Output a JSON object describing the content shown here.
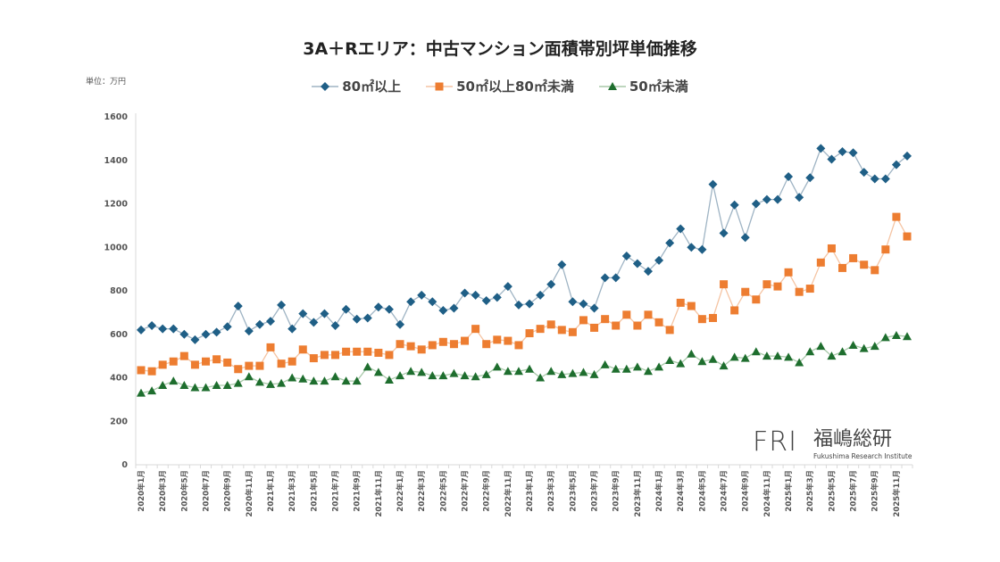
{
  "chart_data": {
    "type": "line",
    "title": "3A＋Rエリア：中古マンション面積帯別坪単価推移",
    "unit_label": "単位：万円",
    "ylim": [
      0,
      1600
    ],
    "yticks": [
      0,
      200,
      400,
      600,
      800,
      1000,
      1200,
      1400,
      1600
    ],
    "grid": false,
    "legend_position": "top",
    "x_tick_labels": [
      "2020年1月",
      "2020年3月",
      "2020年5月",
      "2020年7月",
      "2020年9月",
      "2020年11月",
      "2021年1月",
      "2021年3月",
      "2021年5月",
      "2021年7月",
      "2021年9月",
      "2021年11月",
      "2022年1月",
      "2022年3月",
      "2022年5月",
      "2022年7月",
      "2022年9月",
      "2022年11月",
      "2023年1月",
      "2023年3月",
      "2023年5月",
      "2023年7月",
      "2023年9月",
      "2023年11月",
      "2024年1月",
      "2024年3月",
      "2024年5月",
      "2024年7月",
      "2024年9月",
      "2024年11月",
      "2025年1月",
      "2025年3月",
      "2025年5月",
      "2025年7月",
      "2025年9月",
      "2025年11月"
    ],
    "x_start": "2020年1月",
    "x_end": "2025年12月",
    "series": [
      {
        "name": "80㎡以上",
        "color": "#1f5f86",
        "line_color": "#9fb4c4",
        "marker": "diamond",
        "values": [
          620,
          640,
          625,
          625,
          600,
          575,
          600,
          610,
          635,
          730,
          615,
          645,
          660,
          735,
          625,
          695,
          655,
          695,
          640,
          715,
          670,
          675,
          725,
          715,
          645,
          750,
          780,
          750,
          710,
          720,
          790,
          780,
          755,
          770,
          820,
          735,
          740,
          780,
          830,
          920,
          750,
          740,
          720,
          860,
          860,
          960,
          925,
          890,
          940,
          1020,
          1085,
          1000,
          990,
          1290,
          1065,
          1195,
          1045,
          1200,
          1220,
          1220,
          1325,
          1230,
          1320,
          1455,
          1405,
          1440,
          1435,
          1345,
          1315,
          1315,
          1380,
          1420
        ]
      },
      {
        "name": "50㎡以上80㎡未満",
        "color": "#ed7d31",
        "line_color": "#f5c4a3",
        "marker": "square",
        "values": [
          435,
          430,
          460,
          475,
          500,
          460,
          475,
          485,
          470,
          440,
          455,
          455,
          540,
          465,
          475,
          530,
          490,
          505,
          505,
          520,
          520,
          520,
          515,
          505,
          555,
          545,
          530,
          550,
          565,
          555,
          570,
          625,
          555,
          575,
          570,
          550,
          605,
          625,
          645,
          620,
          610,
          665,
          630,
          670,
          640,
          690,
          640,
          690,
          655,
          620,
          745,
          730,
          670,
          675,
          830,
          710,
          795,
          760,
          830,
          820,
          885,
          795,
          810,
          930,
          995,
          905,
          950,
          920,
          895,
          990,
          1140,
          1050
        ]
      },
      {
        "name": "50㎡未満",
        "color": "#1e6e2e",
        "line_color": "#a8c9a9",
        "marker": "triangle",
        "values": [
          330,
          340,
          365,
          385,
          365,
          355,
          355,
          365,
          365,
          375,
          405,
          380,
          370,
          375,
          400,
          395,
          385,
          385,
          405,
          385,
          385,
          450,
          425,
          390,
          410,
          430,
          425,
          410,
          410,
          420,
          410,
          405,
          415,
          450,
          430,
          430,
          440,
          400,
          430,
          415,
          420,
          425,
          415,
          460,
          440,
          440,
          450,
          430,
          450,
          480,
          465,
          510,
          475,
          485,
          455,
          495,
          490,
          520,
          500,
          500,
          495,
          470,
          520,
          545,
          500,
          520,
          550,
          535,
          545,
          585,
          595,
          590
        ]
      }
    ]
  },
  "logo": {
    "mark": "FRI",
    "name": "福嶋総研",
    "name_en": "Fukushima Research Institute"
  }
}
